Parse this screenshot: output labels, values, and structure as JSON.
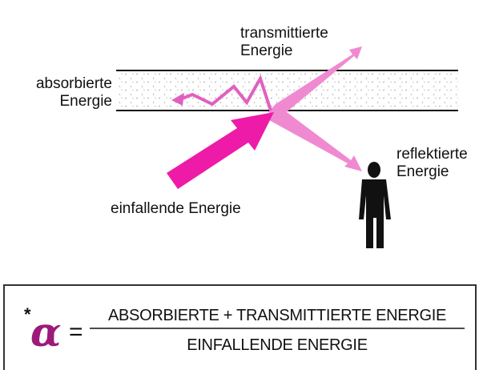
{
  "labels": {
    "transmitted": [
      "transmittierte",
      "Energie"
    ],
    "absorbed": [
      "absorbierte",
      "Energie"
    ],
    "reflected": [
      "reflektierte",
      "Energie"
    ],
    "incident": "einfallende Energie"
  },
  "formula": {
    "asterisk": "*",
    "symbol": "α",
    "equals": "=",
    "numerator": "ABSORBIERTE + TRANSMITTIERTE ENERGIE",
    "denominator": "EINFALLENDE ENERGIE"
  }
}
